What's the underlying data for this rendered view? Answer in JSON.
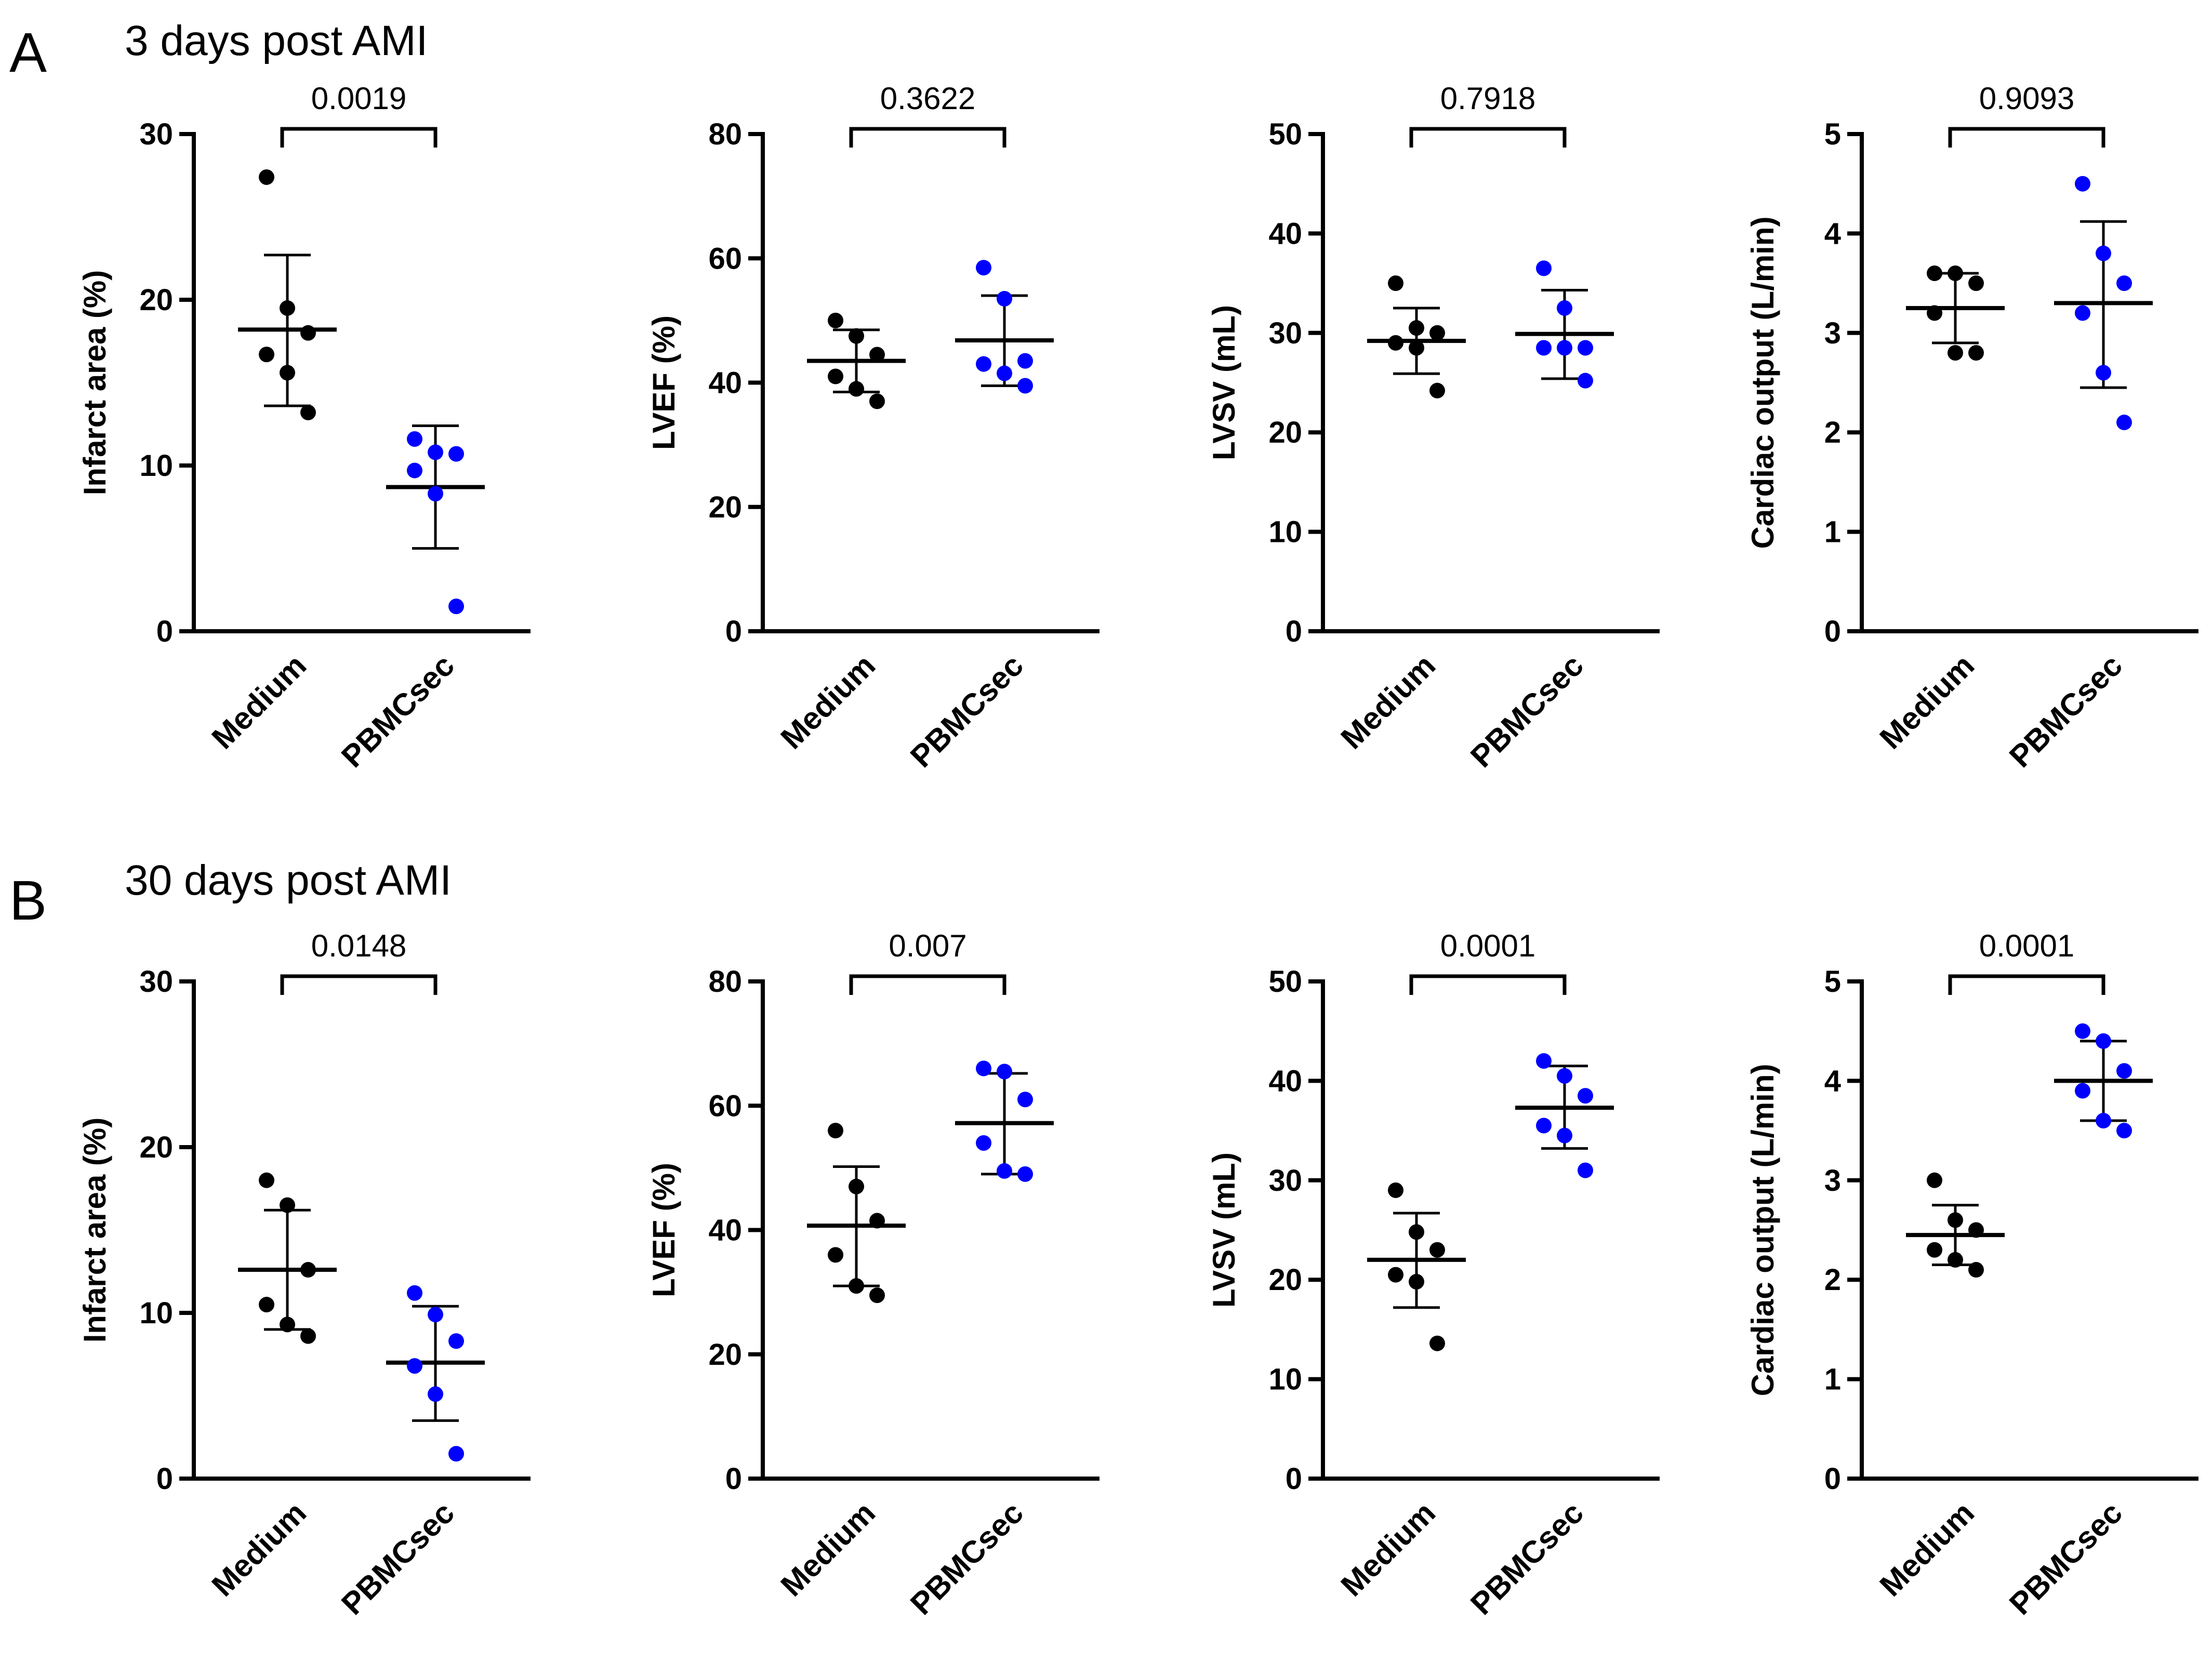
{
  "colors": {
    "medium": "#000000",
    "pbmcsec": "#0000ff",
    "axis": "#000000"
  },
  "categories": [
    "Medium",
    "PBMCsec"
  ],
  "panels": [
    {
      "letter": "A",
      "title": "3 days post AMI"
    },
    {
      "letter": "B",
      "title": "30 days post AMI"
    }
  ],
  "chart_data": [
    {
      "type": "scatter",
      "panel": "A",
      "ylabel": "Infarct area (%)",
      "ylim": [
        0,
        30
      ],
      "yticks": [
        0,
        10,
        20,
        30
      ],
      "categories": [
        "Medium",
        "PBMCsec"
      ],
      "p_value": "0.0019",
      "series": [
        {
          "name": "Medium",
          "values": [
            27.4,
            19.5,
            18.0,
            16.7,
            15.6,
            13.2
          ],
          "mean": 18.2,
          "sd_low": 13.6,
          "sd_high": 22.7
        },
        {
          "name": "PBMCsec",
          "values": [
            11.6,
            10.8,
            10.7,
            9.7,
            8.3,
            1.5
          ],
          "mean": 8.7,
          "sd_low": 5.0,
          "sd_high": 12.4
        }
      ]
    },
    {
      "type": "scatter",
      "panel": "A",
      "ylabel": "LVEF (%)",
      "ylim": [
        0,
        80
      ],
      "yticks": [
        0,
        20,
        40,
        60,
        80
      ],
      "categories": [
        "Medium",
        "PBMCsec"
      ],
      "p_value": "0.3622",
      "series": [
        {
          "name": "Medium",
          "values": [
            50.0,
            47.5,
            44.5,
            41.0,
            39.0,
            37.0
          ],
          "mean": 43.5,
          "sd_low": 38.5,
          "sd_high": 48.5
        },
        {
          "name": "PBMCsec",
          "values": [
            58.5,
            53.5,
            43.5,
            43.0,
            41.5,
            39.5
          ],
          "mean": 46.8,
          "sd_low": 39.5,
          "sd_high": 54.0
        }
      ]
    },
    {
      "type": "scatter",
      "panel": "A",
      "ylabel": "LVSV (mL)",
      "ylim": [
        0,
        50
      ],
      "yticks": [
        0,
        10,
        20,
        30,
        40,
        50
      ],
      "categories": [
        "Medium",
        "PBMCsec"
      ],
      "p_value": "0.7918",
      "series": [
        {
          "name": "Medium",
          "values": [
            35.0,
            30.5,
            30.0,
            29.0,
            28.5,
            24.2
          ],
          "mean": 29.2,
          "sd_low": 25.9,
          "sd_high": 32.5
        },
        {
          "name": "PBMCsec",
          "values": [
            36.5,
            32.5,
            28.5,
            28.5,
            28.5,
            25.2
          ],
          "mean": 29.9,
          "sd_low": 25.4,
          "sd_high": 34.3
        }
      ]
    },
    {
      "type": "scatter",
      "panel": "A",
      "ylabel": "Cardiac output (L/min)",
      "ylim": [
        0,
        5
      ],
      "yticks": [
        0,
        1,
        2,
        3,
        4,
        5
      ],
      "categories": [
        "Medium",
        "PBMCsec"
      ],
      "p_value": "0.9093",
      "series": [
        {
          "name": "Medium",
          "values": [
            3.6,
            3.6,
            3.5,
            3.2,
            2.8,
            2.8
          ],
          "mean": 3.25,
          "sd_low": 2.9,
          "sd_high": 3.6
        },
        {
          "name": "PBMCsec",
          "values": [
            4.5,
            3.8,
            3.5,
            3.2,
            2.6,
            2.1
          ],
          "mean": 3.3,
          "sd_low": 2.45,
          "sd_high": 4.12
        }
      ]
    },
    {
      "type": "scatter",
      "panel": "B",
      "ylabel": "Infarct area (%)",
      "ylim": [
        0,
        30
      ],
      "yticks": [
        0,
        10,
        20,
        30
      ],
      "categories": [
        "Medium",
        "PBMCsec"
      ],
      "p_value": "0.0148",
      "series": [
        {
          "name": "Medium",
          "values": [
            18.0,
            16.5,
            12.6,
            10.5,
            9.3,
            8.6
          ],
          "mean": 12.6,
          "sd_low": 9.0,
          "sd_high": 16.2
        },
        {
          "name": "PBMCsec",
          "values": [
            11.2,
            9.9,
            8.3,
            6.8,
            5.1,
            1.5
          ],
          "mean": 7.0,
          "sd_low": 3.5,
          "sd_high": 10.4
        }
      ]
    },
    {
      "type": "scatter",
      "panel": "B",
      "ylabel": "LVEF (%)",
      "ylim": [
        0,
        80
      ],
      "yticks": [
        0,
        20,
        40,
        60,
        80
      ],
      "categories": [
        "Medium",
        "PBMCsec"
      ],
      "p_value": "0.007",
      "series": [
        {
          "name": "Medium",
          "values": [
            56.0,
            47.0,
            41.5,
            36.0,
            31.0,
            29.5
          ],
          "mean": 40.7,
          "sd_low": 31.0,
          "sd_high": 50.2
        },
        {
          "name": "PBMCsec",
          "values": [
            66.0,
            65.5,
            61.0,
            54.0,
            49.5,
            49.0
          ],
          "mean": 57.2,
          "sd_low": 49.0,
          "sd_high": 65.2
        }
      ]
    },
    {
      "type": "scatter",
      "panel": "B",
      "ylabel": "LVSV (mL)",
      "ylim": [
        0,
        50
      ],
      "yticks": [
        0,
        10,
        20,
        30,
        40,
        50
      ],
      "categories": [
        "Medium",
        "PBMCsec"
      ],
      "p_value": "0.0001",
      "series": [
        {
          "name": "Medium",
          "values": [
            29.0,
            24.8,
            23.0,
            20.5,
            19.8,
            13.6
          ],
          "mean": 22.0,
          "sd_low": 17.2,
          "sd_high": 26.7
        },
        {
          "name": "PBMCsec",
          "values": [
            42.0,
            40.5,
            38.5,
            35.5,
            34.5,
            31.0
          ],
          "mean": 37.3,
          "sd_low": 33.2,
          "sd_high": 41.5
        }
      ]
    },
    {
      "type": "scatter",
      "panel": "B",
      "ylabel": "Cardiac output (L/min)",
      "ylim": [
        0,
        5
      ],
      "yticks": [
        0,
        1,
        2,
        3,
        4,
        5
      ],
      "categories": [
        "Medium",
        "PBMCsec"
      ],
      "p_value": "0.0001",
      "series": [
        {
          "name": "Medium",
          "values": [
            3.0,
            2.6,
            2.5,
            2.3,
            2.2,
            2.1
          ],
          "mean": 2.45,
          "sd_low": 2.15,
          "sd_high": 2.75
        },
        {
          "name": "PBMCsec",
          "values": [
            4.5,
            4.4,
            4.1,
            3.9,
            3.6,
            3.5
          ],
          "mean": 4.0,
          "sd_low": 3.6,
          "sd_high": 4.4
        }
      ]
    }
  ]
}
